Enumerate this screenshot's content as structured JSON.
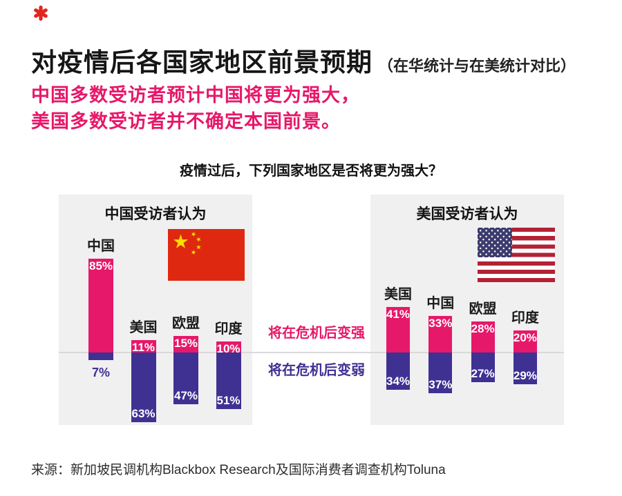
{
  "logo": {
    "name": "red-asterisk-logo",
    "color": "#e0261f"
  },
  "header": {
    "title": "对疫情后各国家地区前景预期",
    "title_note": "（在华统计与在美统计对比）",
    "subtitle_line1": "中国多数受访者预计中国将更为强大，",
    "subtitle_line2": "美国多数受访者并不确定本国前景。"
  },
  "chart_data": {
    "type": "bar",
    "title": "疫情过后，下列国家地区是否将更为强大？",
    "unit": "%",
    "orientation": "diverging-vertical",
    "legend": [
      {
        "label": "将在危机后变强",
        "color": "#e6186a"
      },
      {
        "label": "将在危机后变弱",
        "color": "#3e3192"
      }
    ],
    "panels": [
      {
        "title": "中国受访者认为",
        "flag": "china-flag",
        "categories": [
          "中国",
          "美国",
          "欧盟",
          "印度"
        ],
        "series": [
          {
            "name": "将在危机后变强",
            "values": [
              85,
              11,
              15,
              10
            ]
          },
          {
            "name": "将在危机后变弱",
            "values": [
              7,
              63,
              47,
              51
            ]
          }
        ]
      },
      {
        "title": "美国受访者认为",
        "flag": "usa-flag",
        "categories": [
          "美国",
          "中国",
          "欧盟",
          "印度"
        ],
        "series": [
          {
            "name": "将在危机后变强",
            "values": [
              41,
              33,
              28,
              20
            ]
          },
          {
            "name": "将在危机后变弱",
            "values": [
              34,
              37,
              27,
              29
            ]
          }
        ]
      }
    ]
  },
  "source": {
    "text": "来源：新加坡民调机构Blackbox Research及国际消费者调查机构Toluna"
  },
  "colors": {
    "strong_pink": "#e6186a",
    "weak_purple": "#3e3192",
    "panel_bg": "#f0f0f0",
    "axis_line": "#d9d9d9",
    "china_flag_red": "#de2910",
    "china_flag_yellow": "#ffde00",
    "usa_flag_red": "#b22234",
    "usa_flag_blue": "#3c3b6e"
  }
}
